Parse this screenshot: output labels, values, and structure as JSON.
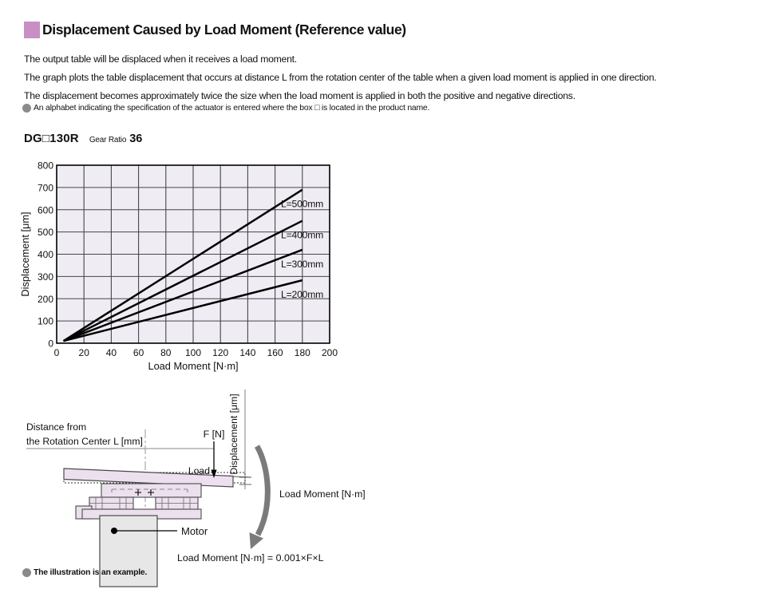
{
  "header": {
    "title": "Displacement Caused by Load Moment  (Reference value)",
    "accent_color": "#c98fc4"
  },
  "intro": {
    "lines": [
      "The output table will be displaced when it receives a load moment.",
      "The graph plots the table displacement that occurs at distance L from the rotation center of the table when a given load moment is applied in one direction.",
      "The displacement becomes approximately twice the size when the load moment is applied in both the positive and negative directions."
    ],
    "note": "An alphabet indicating the specification of the actuator is entered where the box □ is located in the product name."
  },
  "product": {
    "model": "DG□130R",
    "gear_ratio_label": "Gear Ratio",
    "gear_ratio_value": "36"
  },
  "chart_data": {
    "type": "line",
    "title": "",
    "xlabel": "Load Moment [N·m]",
    "ylabel": "Displacement [μm]",
    "xlim": [
      0,
      200
    ],
    "ylim": [
      0,
      800
    ],
    "xticks": [
      0,
      20,
      40,
      60,
      80,
      100,
      120,
      140,
      160,
      180,
      200
    ],
    "yticks": [
      0,
      100,
      200,
      300,
      400,
      500,
      600,
      700,
      800
    ],
    "grid": true,
    "legend_position": "inline-right",
    "plot_bg": "#efedf3",
    "grid_color": "#46464d",
    "line_color": "#000000",
    "border_color": "#000000",
    "series": [
      {
        "name": "L=500mm",
        "x": [
          5,
          180
        ],
        "y": [
          10,
          690
        ]
      },
      {
        "name": "L=400mm",
        "x": [
          5,
          180
        ],
        "y": [
          10,
          550
        ]
      },
      {
        "name": "L=300mm",
        "x": [
          5,
          180
        ],
        "y": [
          10,
          420
        ]
      },
      {
        "name": "L=200mm",
        "x": [
          5,
          180
        ],
        "y": [
          10,
          283
        ]
      }
    ]
  },
  "diagram": {
    "distance_line1": "Distance from",
    "distance_line2": "the Rotation Center L [mm]",
    "force_label": "F [N]",
    "load_label": "Load",
    "displacement_label": "Displacement [μm]",
    "motor_label": "Motor",
    "moment_label": "Load Moment [N·m]",
    "formula": "Load Moment [N·m] = 0.001×F×L",
    "note": "The illustration is an example."
  }
}
